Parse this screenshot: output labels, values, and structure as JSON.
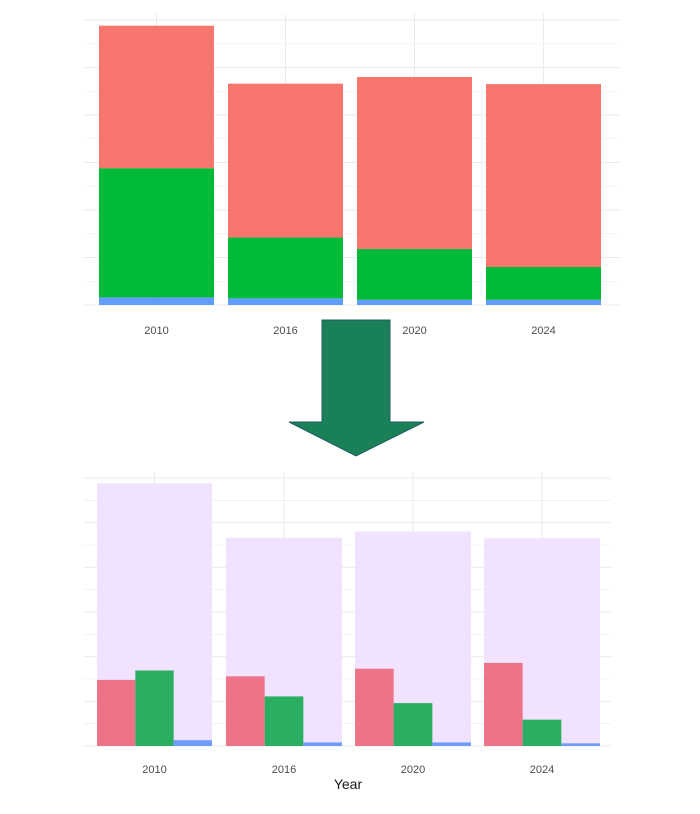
{
  "colors": {
    "series_a": "#F8766D",
    "series_b": "#00BA38",
    "series_c": "#619CFF",
    "total": "#F1E2FF",
    "arrow": "#198058",
    "grid": "#EBEBEB"
  },
  "chart_data": [
    {
      "type": "bar",
      "stacking": "stacked",
      "title": "",
      "xlabel": "",
      "ylabel": "",
      "categories": [
        "2010",
        "2016",
        "2020",
        "2024"
      ],
      "ylim": [
        0,
        60
      ],
      "grid": true,
      "legend": "none",
      "series": [
        {
          "values": [
            1.6,
            1.4,
            1.1,
            1.1
          ]
        },
        {
          "values": [
            27.2,
            12.8,
            10.7,
            6.9
          ]
        },
        {
          "values": [
            30.0,
            32.4,
            36.2,
            38.5
          ]
        }
      ]
    },
    {
      "type": "bar",
      "stacking": "grouped",
      "title": "",
      "xlabel": "Year",
      "ylabel": "",
      "categories": [
        "2010",
        "2016",
        "2020",
        "2024"
      ],
      "ylim": [
        0,
        60
      ],
      "grid": true,
      "legend": "none",
      "background_totals": [
        58.8,
        46.6,
        48.0,
        46.5
      ],
      "series": [
        {
          "values": [
            14.8,
            15.6,
            17.3,
            18.6
          ]
        },
        {
          "values": [
            16.9,
            11.1,
            9.6,
            5.9
          ]
        },
        {
          "values": [
            1.3,
            0.8,
            0.8,
            0.6
          ]
        }
      ]
    }
  ]
}
